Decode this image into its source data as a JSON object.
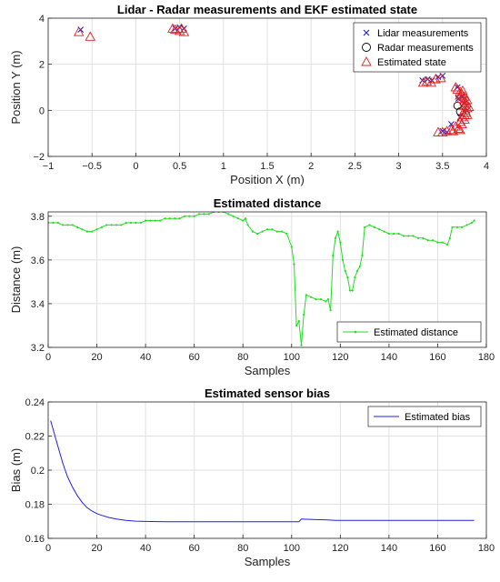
{
  "chart_data": [
    {
      "type": "scatter",
      "title": "Lidar - Radar measurements and EKF estimated state",
      "xlabel": "Position X (m)",
      "ylabel": "Position Y (m)",
      "xlim": [
        -1,
        4
      ],
      "ylim": [
        -2,
        4
      ],
      "xticks": [
        "−1",
        "−0.5",
        "0",
        "0.5",
        "1",
        "1.5",
        "2",
        "2.5",
        "3",
        "3.5",
        "4"
      ],
      "yticks": [
        "−2",
        "0",
        "2",
        "4"
      ],
      "grid": true,
      "legend_position": "top-right",
      "series": [
        {
          "name": "Lidar measurements",
          "marker": "x",
          "color": "#1f1fd6",
          "points": [
            [
              -0.63,
              3.5
            ],
            [
              0.45,
              3.55
            ],
            [
              0.5,
              3.6
            ],
            [
              0.55,
              3.55
            ],
            [
              3.27,
              1.3
            ],
            [
              3.33,
              1.35
            ],
            [
              3.38,
              1.3
            ],
            [
              3.45,
              1.45
            ],
            [
              3.5,
              1.5
            ],
            [
              3.67,
              1.0
            ],
            [
              3.72,
              0.6
            ],
            [
              3.75,
              0.3
            ],
            [
              3.7,
              -0.3
            ],
            [
              3.6,
              -0.6
            ],
            [
              3.5,
              -0.9
            ],
            [
              3.55,
              -0.95
            ],
            [
              3.78,
              0.0
            ],
            [
              3.68,
              0.5
            ]
          ]
        },
        {
          "name": "Radar measurements",
          "marker": "o",
          "color": "#000000",
          "points": [
            [
              3.67,
              0.2
            ],
            [
              3.7,
              -0.05
            ]
          ]
        },
        {
          "name": "Estimated state",
          "marker": "triangle",
          "color": "#e02020",
          "points": [
            [
              -0.65,
              3.4
            ],
            [
              -0.52,
              3.2
            ],
            [
              0.45,
              3.5
            ],
            [
              0.5,
              3.45
            ],
            [
              0.55,
              3.4
            ],
            [
              0.42,
              3.55
            ],
            [
              0.52,
              3.55
            ],
            [
              3.28,
              1.2
            ],
            [
              3.32,
              1.25
            ],
            [
              3.37,
              1.2
            ],
            [
              3.42,
              1.35
            ],
            [
              3.48,
              1.4
            ],
            [
              3.65,
              1.0
            ],
            [
              3.67,
              0.9
            ],
            [
              3.7,
              0.8
            ],
            [
              3.72,
              0.7
            ],
            [
              3.75,
              0.6
            ],
            [
              3.72,
              0.5
            ],
            [
              3.75,
              0.4
            ],
            [
              3.77,
              0.3
            ],
            [
              3.75,
              0.2
            ],
            [
              3.78,
              0.1
            ],
            [
              3.75,
              0.0
            ],
            [
              3.77,
              -0.1
            ],
            [
              3.75,
              -0.2
            ],
            [
              3.72,
              -0.3
            ],
            [
              3.75,
              -0.4
            ],
            [
              3.7,
              -0.5
            ],
            [
              3.72,
              -0.6
            ],
            [
              3.65,
              -0.7
            ],
            [
              3.68,
              -0.8
            ],
            [
              3.6,
              -0.85
            ],
            [
              3.55,
              -0.9
            ],
            [
              3.5,
              -0.95
            ],
            [
              3.45,
              -0.95
            ],
            [
              3.62,
              -0.9
            ],
            [
              3.7,
              -0.85
            ],
            [
              3.78,
              -0.2
            ],
            [
              3.8,
              0.15
            ],
            [
              3.73,
              0.85
            ],
            [
              3.7,
              0.65
            ],
            [
              3.78,
              0.45
            ]
          ]
        }
      ]
    },
    {
      "type": "line",
      "title": "Estimated distance",
      "xlabel": "Samples",
      "ylabel": "Distance (m)",
      "xlim": [
        0,
        180
      ],
      "ylim": [
        3.2,
        3.82
      ],
      "xticks": [
        "0",
        "20",
        "40",
        "60",
        "80",
        "100",
        "120",
        "140",
        "160",
        "180"
      ],
      "yticks": [
        "3.2",
        "3.4",
        "3.6",
        "3.8"
      ],
      "grid": true,
      "legend_position": "bottom-right",
      "series": [
        {
          "name": "Estimated distance",
          "color": "#22dd22",
          "marker": "dot",
          "x": [
            0,
            2,
            4,
            6,
            8,
            10,
            12,
            14,
            16,
            18,
            20,
            22,
            24,
            26,
            28,
            30,
            32,
            34,
            36,
            38,
            40,
            42,
            44,
            46,
            48,
            50,
            52,
            54,
            56,
            58,
            60,
            62,
            64,
            66,
            68,
            70,
            72,
            74,
            76,
            78,
            80,
            81,
            82,
            84,
            86,
            88,
            90,
            92,
            94,
            96,
            98,
            100,
            101,
            102,
            103,
            104,
            105,
            106,
            108,
            110,
            112,
            114,
            115,
            116,
            117,
            118,
            119,
            120,
            121,
            122,
            123,
            124,
            125,
            126,
            127,
            128,
            129,
            130,
            132,
            134,
            136,
            138,
            140,
            142,
            144,
            146,
            148,
            150,
            152,
            154,
            156,
            158,
            160,
            162,
            164,
            165,
            166,
            168,
            170,
            172,
            174,
            175
          ],
          "y": [
            3.77,
            3.77,
            3.77,
            3.76,
            3.76,
            3.76,
            3.75,
            3.74,
            3.73,
            3.73,
            3.74,
            3.75,
            3.76,
            3.76,
            3.76,
            3.76,
            3.77,
            3.77,
            3.77,
            3.77,
            3.78,
            3.78,
            3.78,
            3.78,
            3.79,
            3.79,
            3.79,
            3.79,
            3.8,
            3.8,
            3.8,
            3.81,
            3.81,
            3.81,
            3.82,
            3.82,
            3.82,
            3.81,
            3.8,
            3.79,
            3.78,
            3.79,
            3.76,
            3.73,
            3.72,
            3.73,
            3.74,
            3.74,
            3.73,
            3.73,
            3.72,
            3.66,
            3.58,
            3.3,
            3.32,
            3.21,
            3.35,
            3.44,
            3.43,
            3.42,
            3.42,
            3.41,
            3.42,
            3.37,
            3.62,
            3.7,
            3.73,
            3.68,
            3.6,
            3.55,
            3.52,
            3.46,
            3.46,
            3.52,
            3.55,
            3.57,
            3.62,
            3.75,
            3.76,
            3.75,
            3.74,
            3.73,
            3.72,
            3.72,
            3.72,
            3.71,
            3.71,
            3.71,
            3.7,
            3.7,
            3.69,
            3.69,
            3.68,
            3.68,
            3.67,
            3.7,
            3.75,
            3.75,
            3.75,
            3.76,
            3.77,
            3.78
          ]
        }
      ]
    },
    {
      "type": "line",
      "title": "Estimated sensor bias",
      "xlabel": "Samples",
      "ylabel": "Bias (m)",
      "xlim": [
        0,
        180
      ],
      "ylim": [
        0.16,
        0.24
      ],
      "xticks": [
        "0",
        "20",
        "40",
        "60",
        "80",
        "100",
        "120",
        "140",
        "160",
        "180"
      ],
      "yticks": [
        "0.16",
        "0.18",
        "0.2",
        "0.22",
        "0.24"
      ],
      "grid": true,
      "legend_position": "top-right",
      "series": [
        {
          "name": "Estimated bias",
          "color": "#1f1fe8",
          "x": [
            1,
            2,
            3,
            4,
            5,
            6,
            7,
            8,
            10,
            12,
            14,
            16,
            18,
            20,
            22,
            25,
            28,
            32,
            36,
            40,
            45,
            50,
            60,
            70,
            80,
            90,
            100,
            103,
            104,
            106,
            110,
            115,
            118,
            120,
            130,
            140,
            150,
            160,
            170,
            175
          ],
          "y": [
            0.229,
            0.224,
            0.219,
            0.214,
            0.209,
            0.204,
            0.2,
            0.196,
            0.19,
            0.185,
            0.181,
            0.178,
            0.176,
            0.1745,
            0.1735,
            0.1722,
            0.1713,
            0.1705,
            0.1701,
            0.1699,
            0.1698,
            0.1697,
            0.1697,
            0.1697,
            0.1697,
            0.1697,
            0.1697,
            0.1697,
            0.1713,
            0.1712,
            0.171,
            0.1708,
            0.1705,
            0.1705,
            0.1705,
            0.1705,
            0.1705,
            0.1705,
            0.1705,
            0.1705
          ]
        }
      ]
    }
  ]
}
